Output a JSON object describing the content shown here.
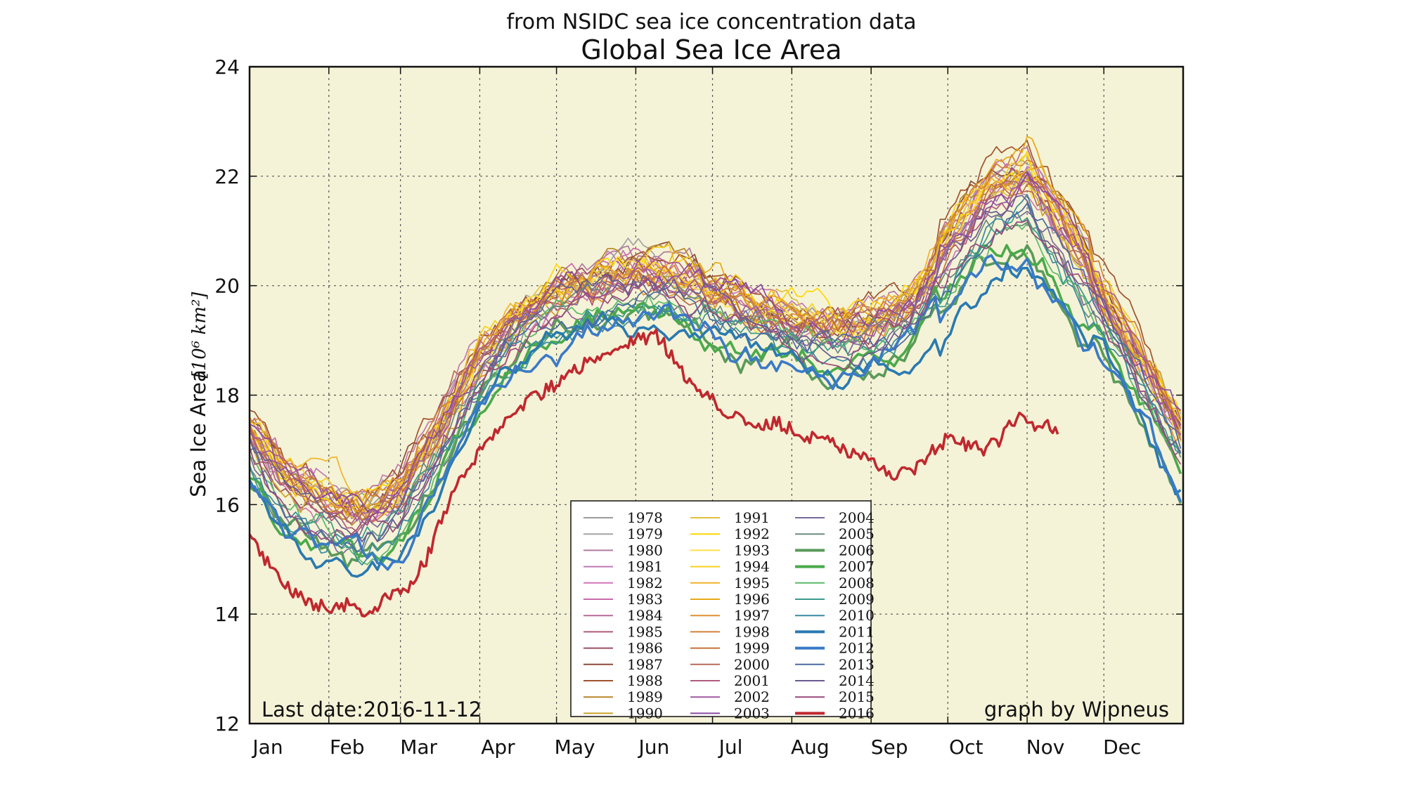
{
  "chart_data": {
    "type": "line",
    "subtitle": "from NSIDC sea ice concentration data",
    "title": "Global Sea Ice Area",
    "ylabel": "Sea Ice Area",
    "ylabel_unit": "[10⁶ km²]",
    "ylim": [
      12,
      24
    ],
    "yticks": [
      "12",
      "14",
      "16",
      "18",
      "20",
      "22",
      "24"
    ],
    "xlim": [
      1,
      366
    ],
    "months": [
      "Jan",
      "Feb",
      "Mar",
      "Apr",
      "May",
      "Jun",
      "Jul",
      "Aug",
      "Sep",
      "Oct",
      "Nov",
      "Dec"
    ],
    "grid": true,
    "background": "#f5f3d7",
    "annotation_left": "Last date:2016-11-12",
    "annotation_right": "graph by Wipneus",
    "legend_position": "bottom-center",
    "climatology": {
      "day": [
        1,
        15,
        32,
        45,
        60,
        75,
        91,
        105,
        121,
        140,
        152,
        165,
        182,
        200,
        213,
        230,
        244,
        260,
        274,
        290,
        305,
        320,
        335,
        350,
        366
      ],
      "area": [
        17.0,
        16.1,
        15.7,
        15.5,
        15.9,
        17.0,
        18.3,
        19.0,
        19.5,
        19.8,
        20.0,
        19.9,
        19.6,
        19.3,
        19.1,
        18.9,
        19.0,
        19.4,
        20.3,
        21.2,
        21.5,
        20.5,
        19.4,
        18.2,
        16.9
      ]
    },
    "series": [
      {
        "name": "1978",
        "color": "#9a9a9a",
        "offset": 0.25
      },
      {
        "name": "1979",
        "color": "#a3a3a3",
        "offset": 0.55
      },
      {
        "name": "1980",
        "color": "#b07aa0",
        "offset": 0.35
      },
      {
        "name": "1981",
        "color": "#c07ab5",
        "offset": 0.5
      },
      {
        "name": "1982",
        "color": "#d277b6",
        "offset": 0.3
      },
      {
        "name": "1983",
        "color": "#c86aa8",
        "offset": 0.4
      },
      {
        "name": "1984",
        "color": "#b86a9a",
        "offset": 0.45
      },
      {
        "name": "1985",
        "color": "#b05a7a",
        "offset": 0.2
      },
      {
        "name": "1986",
        "color": "#9a5060",
        "offset": 0.35
      },
      {
        "name": "1987",
        "color": "#8c4a3a",
        "offset": 0.5
      },
      {
        "name": "1988",
        "color": "#a0522d",
        "offset": 0.6
      },
      {
        "name": "1989",
        "color": "#b8862b",
        "offset": 0.45
      },
      {
        "name": "1990",
        "color": "#c9a227",
        "offset": 0.3
      },
      {
        "name": "1991",
        "color": "#e0c040",
        "offset": 0.4
      },
      {
        "name": "1992",
        "color": "#ffd700",
        "offset": 0.55
      },
      {
        "name": "1993",
        "color": "#ffe24a",
        "offset": 0.35
      },
      {
        "name": "1994",
        "color": "#f5d020",
        "offset": 0.5
      },
      {
        "name": "1995",
        "color": "#f0b429",
        "offset": 0.45
      },
      {
        "name": "1996",
        "color": "#e6a817",
        "offset": 0.6
      },
      {
        "name": "1997",
        "color": "#e09030",
        "offset": 0.35
      },
      {
        "name": "1998",
        "color": "#d2803a",
        "offset": 0.5
      },
      {
        "name": "1999",
        "color": "#c8703a",
        "offset": 0.4
      },
      {
        "name": "2000",
        "color": "#b86a5a",
        "offset": 0.3
      },
      {
        "name": "2001",
        "color": "#b05a80",
        "offset": 0.25
      },
      {
        "name": "2002",
        "color": "#a05aa0",
        "offset": 0.2
      },
      {
        "name": "2003",
        "color": "#8a4aa0",
        "offset": 0.3
      },
      {
        "name": "2004",
        "color": "#7a6a9a",
        "offset": 0.05
      },
      {
        "name": "2005",
        "color": "#6a8a80",
        "offset": -0.15
      },
      {
        "name": "2006",
        "color": "#5a9a5a",
        "offset": -0.55,
        "bold": true
      },
      {
        "name": "2007",
        "color": "#4aaa4a",
        "offset": -0.45,
        "bold": true
      },
      {
        "name": "2008",
        "color": "#5aba6a",
        "offset": -0.1
      },
      {
        "name": "2009",
        "color": "#3a9a8a",
        "offset": -0.2
      },
      {
        "name": "2010",
        "color": "#3a8aa0",
        "offset": -0.3
      },
      {
        "name": "2011",
        "color": "#2a7ab0",
        "offset": -0.6,
        "bold": true
      },
      {
        "name": "2012",
        "color": "#3a7ac8",
        "offset": -0.65,
        "bold": true
      },
      {
        "name": "2013",
        "color": "#4a6aa0",
        "offset": -0.05
      },
      {
        "name": "2014",
        "color": "#6a5a90",
        "offset": 0.1
      },
      {
        "name": "2015",
        "color": "#9a4a7a",
        "offset": -0.1
      },
      {
        "name": "2016",
        "color": "#c0282e",
        "bold": true,
        "day": [
          1,
          10,
          20,
          32,
          40,
          48,
          55,
          62,
          70,
          80,
          91,
          100,
          110,
          121,
          130,
          140,
          152,
          160,
          165,
          172,
          180,
          190,
          200,
          208,
          215,
          222,
          230,
          237,
          245,
          252,
          260,
          268,
          274,
          281,
          288,
          295,
          302,
          308,
          312,
          317
        ],
        "area": [
          15.4,
          14.8,
          14.3,
          14.1,
          14.2,
          14.0,
          14.3,
          14.4,
          15.0,
          16.2,
          17.0,
          17.5,
          17.9,
          18.2,
          18.5,
          18.8,
          19.0,
          19.1,
          18.8,
          18.3,
          18.0,
          17.6,
          17.4,
          17.5,
          17.3,
          17.2,
          17.1,
          16.9,
          16.8,
          16.5,
          16.6,
          17.0,
          17.2,
          17.1,
          17.0,
          17.2,
          17.7,
          17.4,
          17.5,
          17.3
        ]
      }
    ]
  }
}
